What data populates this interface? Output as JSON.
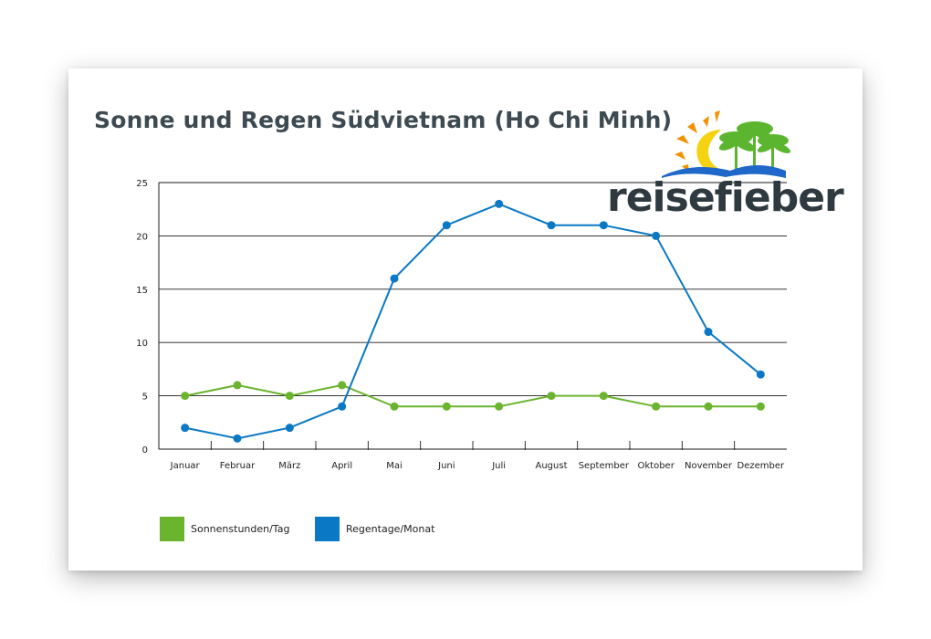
{
  "colors": {
    "sun": "#6ab42e",
    "rain": "#0a78c4",
    "grid": "#1a1a1a",
    "title": "#3e4a52",
    "logo_text": "#2f3a40",
    "logo_sun": "#f5d313",
    "logo_rays": "#f39200",
    "logo_palm": "#5cb52f",
    "logo_water": "#1f67c9"
  },
  "logo": {
    "text": "reisefieber"
  },
  "legend": {
    "sun_label": "Sonnenstunden/Tag",
    "rain_label": "Regentage/Monat"
  },
  "chart_data": {
    "type": "line",
    "title": "Sonne und Regen Südvietnam (Ho Chi Minh)",
    "xlabel": "",
    "ylabel": "",
    "categories": [
      "Januar",
      "Februar",
      "März",
      "April",
      "Mai",
      "Juni",
      "Juli",
      "August",
      "September",
      "Oktober",
      "November",
      "Dezember"
    ],
    "yticks": [
      0,
      5,
      10,
      15,
      20,
      25
    ],
    "ylim": [
      0,
      25
    ],
    "grid": "horizontal",
    "legend_position": "bottom-left",
    "series": [
      {
        "name": "Sonnenstunden/Tag",
        "color": "#6ab42e",
        "values": [
          5,
          6,
          5,
          6,
          4,
          4,
          4,
          5,
          5,
          4,
          4,
          4
        ]
      },
      {
        "name": "Regentage/Monat",
        "color": "#0a78c4",
        "values": [
          2,
          1,
          2,
          4,
          16,
          21,
          23,
          21,
          21,
          20,
          11,
          7
        ]
      }
    ]
  }
}
